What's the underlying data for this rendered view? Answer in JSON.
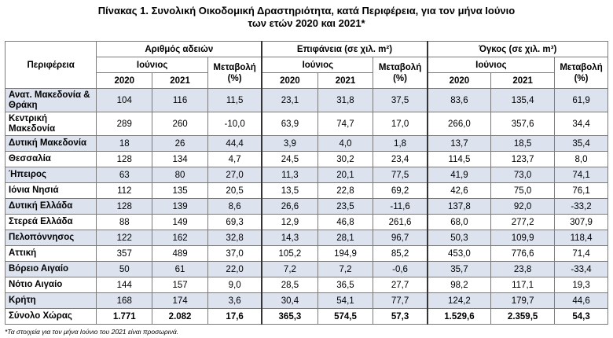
{
  "title_line1": "Πίνακας 1. Συνολική Οικοδομική Δραστηριότητα, κατά Περιφέρεια, για τον μήνα Ιούνιο",
  "title_line2": "των ετών 2020 και 2021*",
  "headers": {
    "region": "Περιφέρεια",
    "permits": "Αριθμός αδειών",
    "area": "Επιφάνεια (σε χιλ. m²)",
    "volume": "Όγκος (σε χιλ. m³)",
    "june": "Ιούνιος",
    "change": "Μεταβολή (%)",
    "y2020": "2020",
    "y2021": "2021"
  },
  "rows": [
    {
      "region": "Ανατ. Μακεδονία & Θράκη",
      "p20": "104",
      "p21": "116",
      "pc": "11,5",
      "a20": "23,1",
      "a21": "31,8",
      "ac": "37,5",
      "v20": "83,6",
      "v21": "135,4",
      "vc": "61,9"
    },
    {
      "region": "Κεντρική Μακεδονία",
      "p20": "289",
      "p21": "260",
      "pc": "-10,0",
      "a20": "63,9",
      "a21": "74,7",
      "ac": "17,0",
      "v20": "266,0",
      "v21": "357,6",
      "vc": "34,4"
    },
    {
      "region": "Δυτική Μακεδονία",
      "p20": "18",
      "p21": "26",
      "pc": "44,4",
      "a20": "3,9",
      "a21": "4,0",
      "ac": "1,8",
      "v20": "13,7",
      "v21": "18,5",
      "vc": "35,4"
    },
    {
      "region": "Θεσσαλία",
      "p20": "128",
      "p21": "134",
      "pc": "4,7",
      "a20": "24,5",
      "a21": "30,2",
      "ac": "23,4",
      "v20": "114,5",
      "v21": "123,7",
      "vc": "8,0"
    },
    {
      "region": "Ήπειρος",
      "p20": "63",
      "p21": "80",
      "pc": "27,0",
      "a20": "11,3",
      "a21": "20,1",
      "ac": "77,5",
      "v20": "41,9",
      "v21": "73,0",
      "vc": "74,1"
    },
    {
      "region": "Ιόνια Νησιά",
      "p20": "112",
      "p21": "135",
      "pc": "20,5",
      "a20": "13,5",
      "a21": "22,8",
      "ac": "69,2",
      "v20": "42,6",
      "v21": "75,0",
      "vc": "76,1"
    },
    {
      "region": "Δυτική Ελλάδα",
      "p20": "128",
      "p21": "139",
      "pc": "8,6",
      "a20": "26,6",
      "a21": "23,5",
      "ac": "-11,6",
      "v20": "137,8",
      "v21": "92,0",
      "vc": "-33,2"
    },
    {
      "region": "Στερεά Ελλάδα",
      "p20": "88",
      "p21": "149",
      "pc": "69,3",
      "a20": "12,9",
      "a21": "46,8",
      "ac": "261,6",
      "v20": "68,0",
      "v21": "277,2",
      "vc": "307,9"
    },
    {
      "region": "Πελοπόννησος",
      "p20": "122",
      "p21": "162",
      "pc": "32,8",
      "a20": "14,3",
      "a21": "28,1",
      "ac": "96,7",
      "v20": "50,3",
      "v21": "109,9",
      "vc": "118,4"
    },
    {
      "region": "Αττική",
      "p20": "357",
      "p21": "489",
      "pc": "37,0",
      "a20": "105,2",
      "a21": "194,9",
      "ac": "85,2",
      "v20": "453,0",
      "v21": "776,6",
      "vc": "71,4"
    },
    {
      "region": "Βόρειο Αιγαίο",
      "p20": "50",
      "p21": "61",
      "pc": "22,0",
      "a20": "7,2",
      "a21": "7,2",
      "ac": "-0,6",
      "v20": "35,7",
      "v21": "23,8",
      "vc": "-33,4"
    },
    {
      "region": "Νότιο Αιγαίο",
      "p20": "144",
      "p21": "157",
      "pc": "9,0",
      "a20": "28,5",
      "a21": "36,5",
      "ac": "27,7",
      "v20": "98,2",
      "v21": "117,1",
      "vc": "19,3"
    },
    {
      "region": "Κρήτη",
      "p20": "168",
      "p21": "174",
      "pc": "3,6",
      "a20": "30,4",
      "a21": "54,1",
      "ac": "77,7",
      "v20": "124,2",
      "v21": "179,7",
      "vc": "44,6"
    }
  ],
  "total": {
    "region": "Σύνολο Χώρας",
    "p20": "1.771",
    "p21": "2.082",
    "pc": "17,6",
    "a20": "365,3",
    "a21": "574,5",
    "ac": "57,3",
    "v20": "1.529,6",
    "v21": "2.359,5",
    "vc": "54,3"
  },
  "footnote": "*Τα στοιχεία για τον μήνα Ιούνιο του 2021 είναι προσωρινά."
}
